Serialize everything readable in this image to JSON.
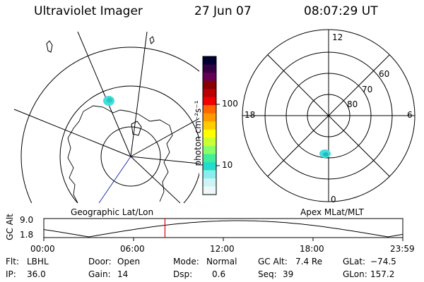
{
  "header": {
    "title": "Ultraviolet Imager",
    "date": "27 Jun 07",
    "time": "08:07:29 UT"
  },
  "geo_map": {
    "label": "Geographic Lat/Lon"
  },
  "polar_map": {
    "label": "Apex MLat/MLT",
    "hour_labels": {
      "top": "12",
      "left": "18",
      "right": "6",
      "bottom": "0"
    },
    "lat_labels": [
      "60",
      "70",
      "80"
    ]
  },
  "colorbar": {
    "unit_label": "photon cm⁻²s⁻¹",
    "tick_labels": [
      "100",
      "10"
    ],
    "colors": [
      "#000033",
      "#330044",
      "#660055",
      "#880000",
      "#bb0000",
      "#ee0000",
      "#ff6600",
      "#ff9900",
      "#ffcc00",
      "#ffff00",
      "#ccff33",
      "#88ff66",
      "#44ee99",
      "#22ddcc",
      "#88eeee",
      "#ccf4f4",
      "#eef8f8"
    ]
  },
  "altitude_plot": {
    "ylabel": "GC Alt",
    "y_ticks": [
      "9.0",
      "1.8"
    ],
    "x_ticks": [
      "00:00",
      "06:00",
      "12:00",
      "18:00",
      "23:59"
    ],
    "current_time_marker_hours": 8.1
  },
  "info": {
    "filter_label": "Flt:",
    "filter_value": "LBHL",
    "ip_label": "IP:",
    "ip_value": "36.0",
    "door_label": "Door:",
    "door_value": "Open",
    "gain_label": "Gain:",
    "gain_value": "14",
    "mode_label": "Mode:",
    "mode_value": "Normal",
    "dsp_label": "Dsp:",
    "dsp_value": "0.6",
    "gcalt_label": "GC Alt:",
    "gcalt_value": "7.4 Re",
    "seq_label": "Seq:",
    "seq_value": "39",
    "glat_label": "GLat:",
    "glat_value": "−74.5",
    "glon_label": "GLon:",
    "glon_value": "157.2"
  },
  "colors": {
    "aurora": "#44dddd",
    "marker": "#dd0000",
    "lines": "#000000"
  }
}
